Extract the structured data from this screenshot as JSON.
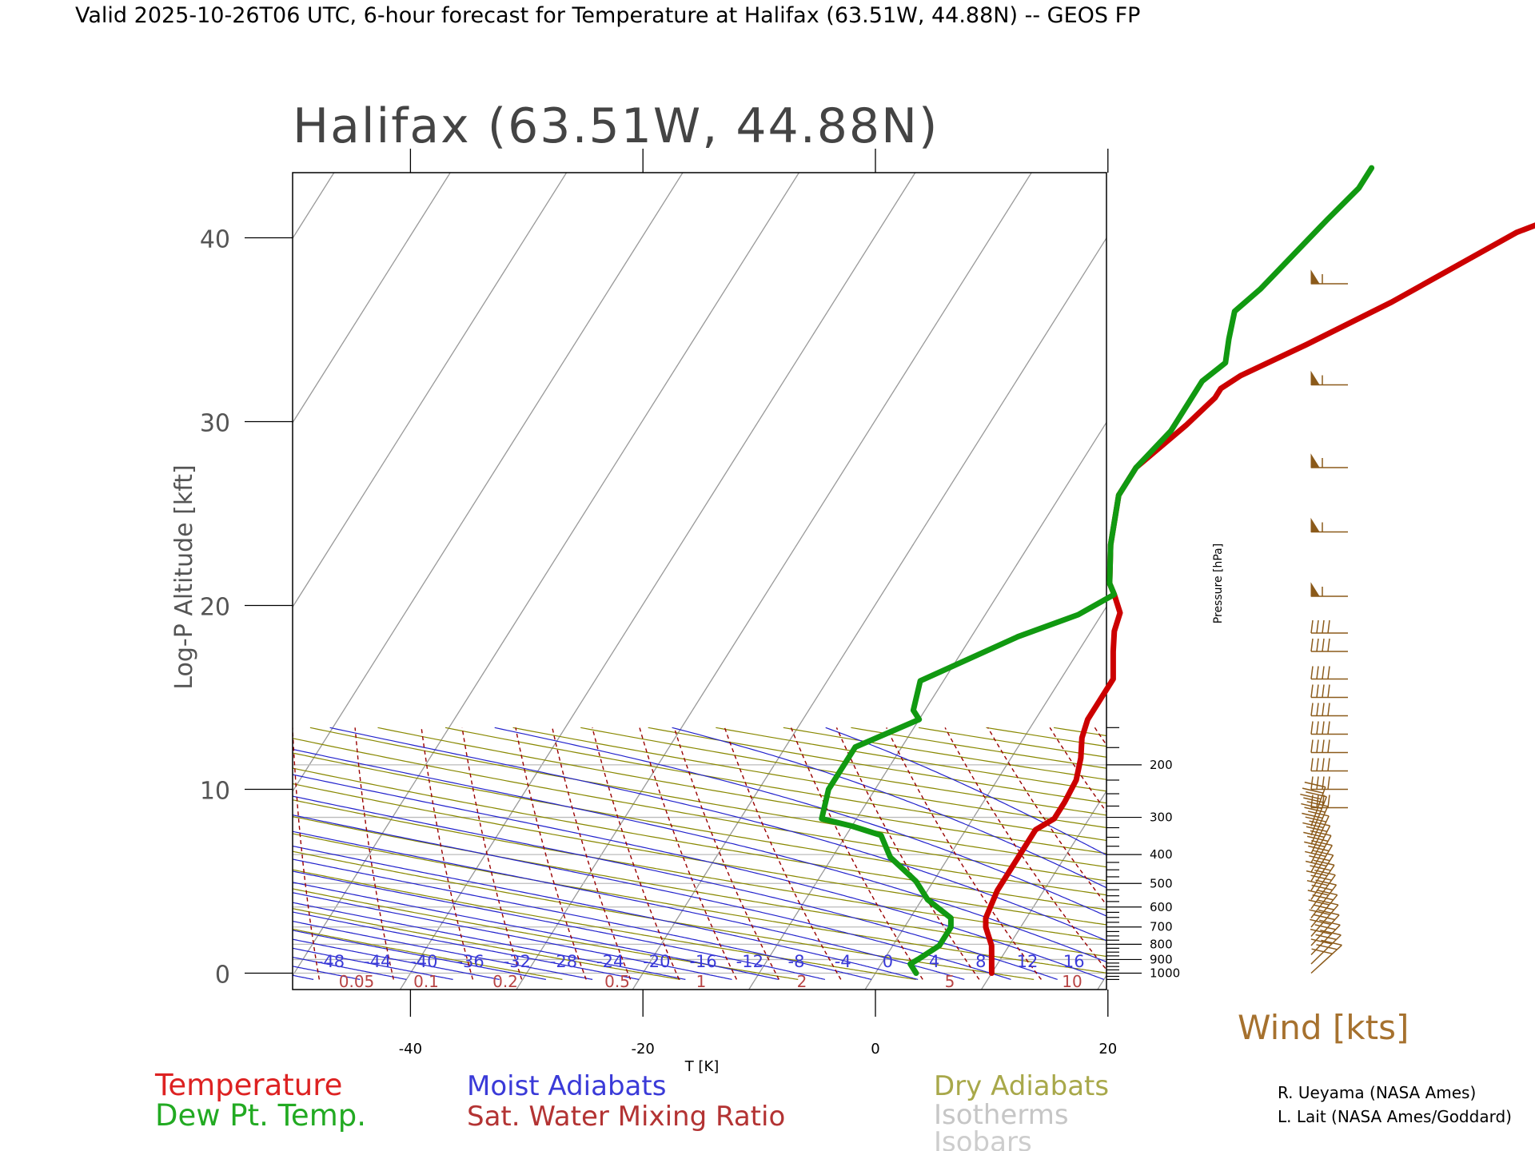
{
  "header": {
    "valid_line": "Valid 2025-10-26T06 UTC, 6-hour forecast for Temperature at Halifax (63.51W, 44.88N) -- GEOS FP"
  },
  "chart_data": {
    "type": "line",
    "title": "Halifax (63.51W, 44.88N)",
    "xlabel": "T [K]",
    "ylabel": "Log-P Altitude [kft]",
    "right_axis_label": "Pressure [hPa]",
    "xlim": [
      -50,
      20
    ],
    "ylim": [
      -1,
      44
    ],
    "x_ticks": [
      -40,
      -20,
      0,
      20
    ],
    "y_ticks": [
      0,
      10,
      20,
      30,
      40
    ],
    "pressure_ticks": [
      {
        "hpa": 1000,
        "kft": 0
      },
      {
        "hpa": 900,
        "kft": 2.8
      },
      {
        "hpa": 800,
        "kft": 5.3
      },
      {
        "hpa": 700,
        "kft": 8.4
      },
      {
        "hpa": 600,
        "kft": 11.9
      },
      {
        "hpa": 500,
        "kft": 15.9
      },
      {
        "hpa": 400,
        "kft": 21.1
      },
      {
        "hpa": 300,
        "kft": 27.7
      },
      {
        "hpa": 200,
        "kft": 37.0
      }
    ],
    "moist_adiabat_labels": [
      "-48",
      "-44",
      "-40",
      "-36",
      "-32",
      "-28",
      "-24",
      "-20",
      "-16",
      "-12",
      "-8",
      "-4",
      "0",
      "4",
      "8",
      "12",
      "16"
    ],
    "mixing_ratio_labels": [
      "0.05",
      "0.1",
      "0.2",
      "0.5",
      "1",
      "2",
      "5",
      "10"
    ],
    "series": [
      {
        "name": "Temperature",
        "color": "#cc0000",
        "points": [
          [
            10,
            0
          ],
          [
            9.5,
            0.5
          ],
          [
            8.5,
            1.5
          ],
          [
            7,
            2.5
          ],
          [
            6.5,
            3
          ],
          [
            6,
            4.5
          ],
          [
            6,
            5.8
          ],
          [
            6,
            6.8
          ],
          [
            6,
            7.8
          ],
          [
            7,
            8.4
          ],
          [
            7,
            9.3
          ],
          [
            6.8,
            10.5
          ],
          [
            6,
            11.7
          ],
          [
            5,
            12.8
          ],
          [
            4.5,
            13.8
          ],
          [
            4.5,
            14.6
          ],
          [
            4.5,
            15.4
          ],
          [
            4.5,
            16
          ],
          [
            3,
            17.5
          ],
          [
            2,
            18.6
          ],
          [
            1.5,
            19.6
          ],
          [
            0,
            20.6
          ],
          [
            -1,
            21.2
          ],
          [
            -3,
            23.3
          ],
          [
            -5,
            26
          ],
          [
            -5,
            27.5
          ],
          [
            -3,
            29.8
          ],
          [
            -2,
            31.3
          ],
          [
            -2,
            31.8
          ],
          [
            -1,
            32.5
          ],
          [
            3,
            34.2
          ],
          [
            8,
            36.5
          ],
          [
            15,
            40.3
          ],
          [
            26,
            43.8
          ]
        ]
      },
      {
        "name": "Dew Pt. Temp.",
        "color": "#119911",
        "points": [
          [
            3.5,
            0
          ],
          [
            2.5,
            0.5
          ],
          [
            3,
            0.8
          ],
          [
            4,
            1.5
          ],
          [
            4,
            2.5
          ],
          [
            3.5,
            3
          ],
          [
            0.5,
            4
          ],
          [
            -1.5,
            5
          ],
          [
            -5,
            6.3
          ],
          [
            -7,
            7.5
          ],
          [
            -10,
            8
          ],
          [
            -13,
            8.4
          ],
          [
            -14,
            10
          ],
          [
            -14,
            11.3
          ],
          [
            -14,
            12.3
          ],
          [
            -10,
            13.8
          ],
          [
            -11,
            14.3
          ],
          [
            -12,
            15.9
          ],
          [
            -6,
            18.3
          ],
          [
            -2,
            19.5
          ],
          [
            0,
            20.6
          ],
          [
            -1,
            21.2
          ],
          [
            -3,
            23.3
          ],
          [
            -5,
            26
          ],
          [
            -5,
            27.5
          ],
          [
            -4,
            29.5
          ],
          [
            -4,
            30.5
          ],
          [
            -4,
            32.2
          ],
          [
            -3,
            33.2
          ],
          [
            -4,
            34.5
          ],
          [
            -5,
            36
          ],
          [
            -4,
            37.2
          ],
          [
            -2,
            41
          ],
          [
            -1,
            42.7
          ],
          [
            -1,
            43.8
          ]
        ]
      }
    ],
    "wind_levels_kft": [
      0,
      0.5,
      1,
      1.5,
      2,
      2.5,
      3,
      3.5,
      4,
      4.5,
      5,
      5.5,
      6,
      6.5,
      7,
      7.5,
      8,
      9,
      10,
      11,
      12,
      13,
      14,
      15,
      16,
      17.5,
      18.5,
      20.5,
      24,
      27.5,
      32,
      37.5
    ],
    "legend": {
      "col1": [
        "Temperature",
        "Dew Pt. Temp."
      ],
      "col2": [
        "Moist Adiabats",
        "Sat. Water Mixing Ratio"
      ],
      "col3": [
        "Dry Adiabats",
        "Isotherms",
        "Isobars"
      ]
    },
    "wind_label": "Wind [kts]",
    "credits": [
      "R. Ueyama (NASA Ames)",
      "L. Lait (NASA Ames/Goddard)"
    ],
    "colors": {
      "temperature": "#cc0000",
      "dewpoint": "#119911",
      "moist_adiabat": "#2222cc",
      "mixing_ratio": "#990000",
      "dry_adiabat": "#888800",
      "isotherm": "#999999",
      "isobar": "#bbbbbb",
      "wind": "#8b5a1a"
    }
  }
}
